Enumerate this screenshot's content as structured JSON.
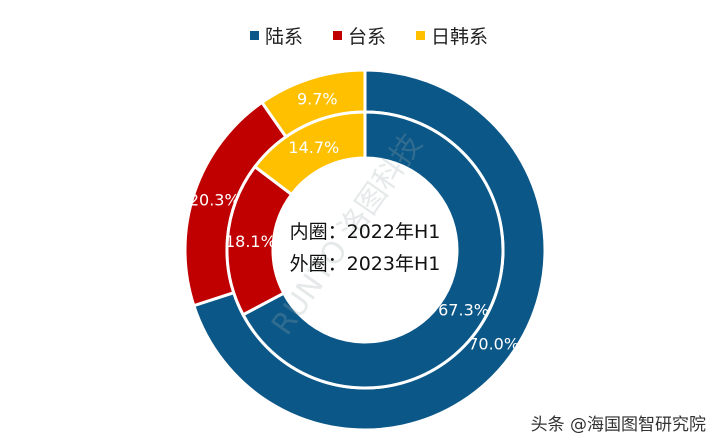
{
  "chart_data": {
    "type": "donut",
    "legend": {
      "placement": "top",
      "entries": [
        "陆系",
        "台系",
        "日韩系"
      ]
    },
    "colors": [
      "#0b5788",
      "#c00000",
      "#ffc000"
    ],
    "center_text": [
      "内圈：2022年H1",
      "外圈：2023年H1"
    ],
    "rings": [
      {
        "name": "2023年H1",
        "position": "outer",
        "values": [
          70.0,
          20.3,
          9.7
        ],
        "labels": [
          "70.0%",
          "20.3%",
          "9.7%"
        ]
      },
      {
        "name": "2022年H1",
        "position": "inner",
        "values": [
          67.3,
          18.1,
          14.7
        ],
        "labels": [
          "67.3%",
          "18.1%",
          "14.7%"
        ]
      }
    ]
  },
  "watermark": "RUNTO 洛图科技",
  "footer": "头条 @海国图智研究院"
}
